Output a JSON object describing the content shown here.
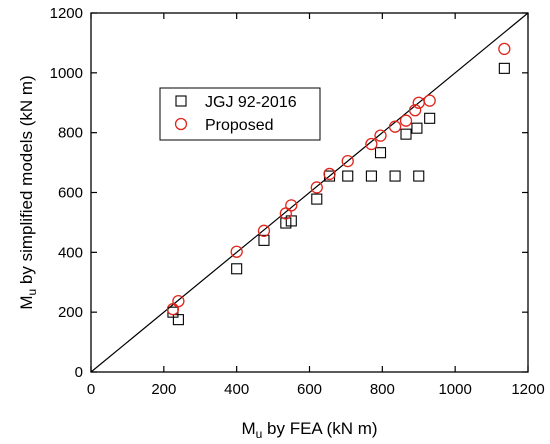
{
  "chart_data": {
    "type": "scatter",
    "xlabel": {
      "main": "M",
      "sub": "u",
      "rest": " by FEA (kN m)"
    },
    "ylabel": {
      "main": "M",
      "sub": "u",
      "rest": " by simplified models (kN m)"
    },
    "xlim": [
      0,
      1200
    ],
    "ylim": [
      0,
      1200
    ],
    "xticks": [
      0,
      200,
      400,
      600,
      800,
      1000,
      1200
    ],
    "yticks": [
      0,
      200,
      400,
      600,
      800,
      1000,
      1200
    ],
    "grid": false,
    "legend_position": "top-left",
    "reference_line": {
      "from": [
        0,
        0
      ],
      "to": [
        1200,
        1200
      ]
    },
    "series": [
      {
        "name": "JGJ 92-2016",
        "marker": "square",
        "color": "#000000",
        "points": [
          [
            225,
            200
          ],
          [
            240,
            175
          ],
          [
            400,
            345
          ],
          [
            475,
            440
          ],
          [
            535,
            498
          ],
          [
            550,
            505
          ],
          [
            620,
            578
          ],
          [
            655,
            655
          ],
          [
            705,
            655
          ],
          [
            770,
            655
          ],
          [
            795,
            733
          ],
          [
            835,
            655
          ],
          [
            865,
            795
          ],
          [
            895,
            815
          ],
          [
            900,
            655
          ],
          [
            930,
            848
          ],
          [
            1135,
            1015
          ]
        ]
      },
      {
        "name": "Proposed",
        "marker": "circle",
        "color": "#e0251b",
        "points": [
          [
            225,
            210
          ],
          [
            240,
            237
          ],
          [
            400,
            402
          ],
          [
            475,
            472
          ],
          [
            535,
            530
          ],
          [
            550,
            557
          ],
          [
            620,
            617
          ],
          [
            655,
            662
          ],
          [
            705,
            705
          ],
          [
            770,
            762
          ],
          [
            795,
            790
          ],
          [
            835,
            820
          ],
          [
            865,
            840
          ],
          [
            890,
            875
          ],
          [
            900,
            900
          ],
          [
            930,
            907
          ],
          [
            1135,
            1080
          ]
        ]
      }
    ]
  }
}
